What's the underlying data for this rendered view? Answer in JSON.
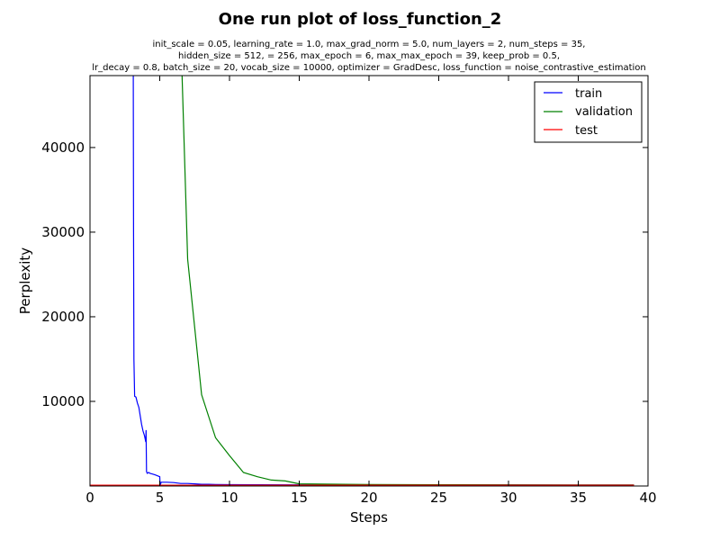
{
  "chart_data": {
    "type": "line",
    "title": "One run plot of loss_function_2",
    "subtitle_lines": [
      "init_scale = 0.05, learning_rate = 1.0, max_grad_norm = 5.0, num_layers = 2, num_steps = 35,",
      "hidden_size = 512,    = 256, max_epoch = 6, max_max_epoch = 39, keep_prob = 0.5,",
      "lr_decay = 0.8, batch_size = 20, vocab_size = 10000, optimizer = GradDesc, loss_function = noise_contrastive_estimation"
    ],
    "xlabel": "Steps",
    "ylabel": "Perplexity",
    "xlim": [
      0,
      40
    ],
    "ylim": [
      0,
      48500
    ],
    "xticks": [
      0,
      5,
      10,
      15,
      20,
      25,
      30,
      35,
      40
    ],
    "yticks": [
      10000,
      20000,
      30000,
      40000
    ],
    "grid": false,
    "legend_position": "top-right",
    "series": [
      {
        "name": "train",
        "color": "#0000ff",
        "x": [
          3.1,
          3.12,
          3.15,
          3.2,
          3.3,
          3.4,
          3.5,
          3.6,
          3.7,
          3.8,
          3.9,
          3.95,
          4.0,
          4.02,
          4.05,
          4.1,
          4.2,
          4.3,
          4.5,
          4.7,
          5.0,
          5.02,
          5.05,
          5.1,
          5.5,
          6.0,
          6.5,
          7.0,
          7.5,
          8.0,
          8.5,
          9.0,
          10,
          12,
          15,
          20,
          25,
          30,
          35,
          39
        ],
        "y": [
          48500,
          30000,
          15000,
          10600,
          10500,
          9800,
          9300,
          8300,
          7300,
          6500,
          6000,
          5600,
          5200,
          6600,
          1700,
          1500,
          1600,
          1500,
          1400,
          1300,
          1100,
          300,
          200,
          450,
          450,
          400,
          300,
          300,
          250,
          200,
          200,
          180,
          160,
          150,
          140,
          130,
          120,
          120,
          110,
          110
        ]
      },
      {
        "name": "validation",
        "color": "#008000",
        "x": [
          6.6,
          7,
          8,
          9,
          10,
          11,
          12,
          13,
          14,
          15,
          20,
          25,
          30,
          35,
          39
        ],
        "y": [
          48500,
          26800,
          10800,
          5700,
          3600,
          1600,
          1100,
          700,
          600,
          250,
          170,
          150,
          140,
          130,
          130
        ],
        "draw_until_step": 39
      },
      {
        "name": "test",
        "color": "#ff0000",
        "x": [
          0,
          39
        ],
        "y": [
          100,
          100
        ]
      }
    ]
  }
}
